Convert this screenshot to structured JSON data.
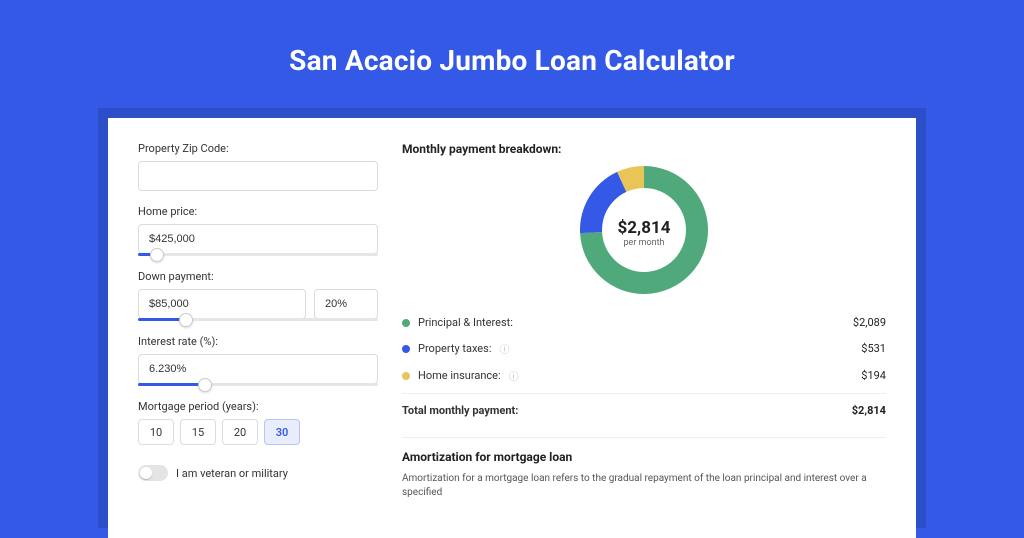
{
  "colors": {
    "page_bg": "#3459e6",
    "green": "#4fa97a",
    "blue": "#3459e6",
    "yellow": "#e9c457",
    "border": "#dcdcdc",
    "text": "#222222"
  },
  "title": "San Acacio Jumbo Loan Calculator",
  "form": {
    "zip": {
      "label": "Property Zip Code:",
      "value": ""
    },
    "home_price": {
      "label": "Home price:",
      "value": "$425,000",
      "slider_pct": 8
    },
    "down_payment": {
      "label": "Down payment:",
      "value": "$85,000",
      "pct_value": "20%",
      "slider_pct": 20
    },
    "interest_rate": {
      "label": "Interest rate (%):",
      "value": "6.230%",
      "slider_pct": 28
    },
    "mortgage_period": {
      "label": "Mortgage period (years):",
      "options": [
        "10",
        "15",
        "20",
        "30"
      ],
      "selected_index": 3
    },
    "veteran": {
      "label": "I am veteran or military",
      "on": false
    }
  },
  "breakdown": {
    "heading": "Monthly payment breakdown:",
    "center_value": "$2,814",
    "center_label": "per month",
    "donut": {
      "segments": [
        {
          "key": "principal_interest",
          "value": 2089,
          "color": "#4fa97a"
        },
        {
          "key": "property_taxes",
          "value": 531,
          "color": "#3459e6"
        },
        {
          "key": "home_insurance",
          "value": 194,
          "color": "#e9c457"
        }
      ],
      "size": 128,
      "thickness": 22,
      "background": "#ffffff"
    },
    "rows": [
      {
        "label": "Principal & Interest:",
        "color": "#4fa97a",
        "value": "$2,089",
        "info": false
      },
      {
        "label": "Property taxes:",
        "color": "#3459e6",
        "value": "$531",
        "info": true
      },
      {
        "label": "Home insurance:",
        "color": "#e9c457",
        "value": "$194",
        "info": true
      }
    ],
    "total_label": "Total monthly payment:",
    "total_value": "$2,814"
  },
  "amortization": {
    "heading": "Amortization for mortgage loan",
    "body": "Amortization for a mortgage loan refers to the gradual repayment of the loan principal and interest over a specified"
  }
}
